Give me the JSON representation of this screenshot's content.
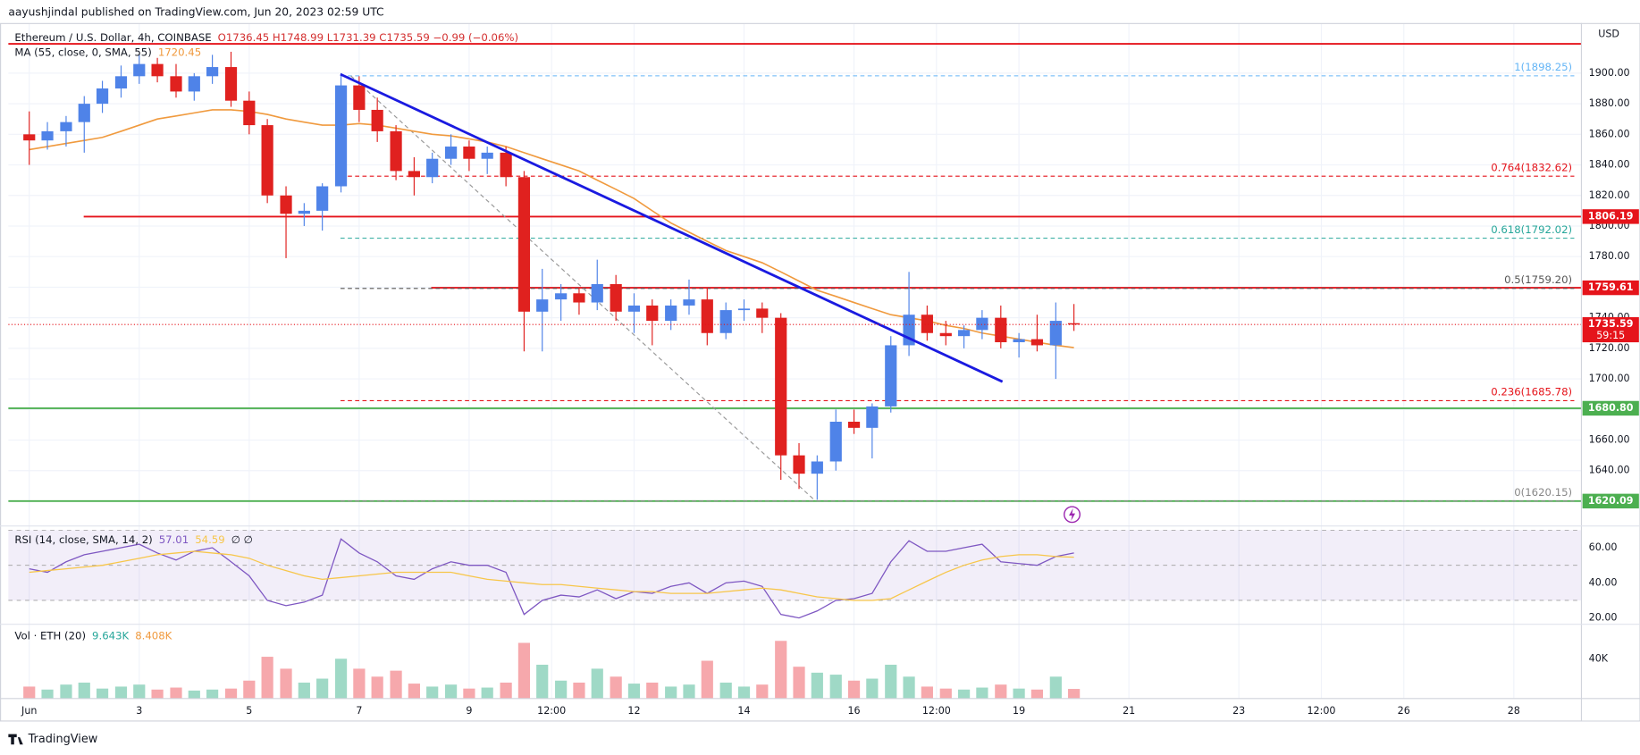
{
  "header": {
    "text": "aayushjindal published on TradingView.com, Jun 20, 2023 02:59 UTC"
  },
  "footer": {
    "text": "TradingView"
  },
  "chart_data": [
    {
      "type": "candlestick",
      "title": "Ethereum / U.S. Dollar, 4h, COINBASE",
      "subtitle": "O1736.45 H1748.99 L1731.39 C1735.59 −0.99 (−0.06%)",
      "axis_unit": "USD",
      "x": [
        1,
        1.33,
        1.67,
        2,
        2.33,
        2.67,
        3,
        3.33,
        3.67,
        4,
        4.33,
        4.67,
        5,
        5.33,
        5.67,
        6,
        6.33,
        6.67,
        7,
        7.33,
        7.67,
        8,
        8.33,
        8.67,
        9,
        9.33,
        9.67,
        10,
        10.33,
        10.67,
        11,
        11.33,
        11.67,
        12,
        12.33,
        12.67,
        13,
        13.33,
        13.67,
        14,
        14.33,
        14.67,
        15,
        15.33,
        15.67,
        16,
        16.33,
        16.67,
        17,
        17.33,
        17.67,
        18,
        18.33,
        18.67,
        19,
        19.33,
        19.67,
        20
      ],
      "open": [
        1860,
        1856,
        1862,
        1868,
        1880,
        1890,
        1898,
        1906,
        1898,
        1888,
        1898,
        1904,
        1882,
        1866,
        1820,
        1808,
        1810,
        1826,
        1892,
        1876,
        1862,
        1836,
        1832,
        1844,
        1852,
        1844,
        1848,
        1832,
        1744,
        1752,
        1756,
        1750,
        1762,
        1744,
        1748,
        1738,
        1748,
        1752,
        1730,
        1745,
        1746,
        1740,
        1650,
        1638,
        1646,
        1672,
        1668,
        1682,
        1722,
        1742,
        1730,
        1728,
        1732,
        1740,
        1724,
        1726,
        1722,
        1736.45
      ],
      "high": [
        1875,
        1868,
        1872,
        1885,
        1895,
        1905,
        1912,
        1910,
        1906,
        1900,
        1912,
        1914,
        1888,
        1870,
        1826,
        1815,
        1828,
        1900,
        1898,
        1884,
        1866,
        1845,
        1848,
        1860,
        1856,
        1852,
        1852,
        1836,
        1772,
        1762,
        1760,
        1778,
        1768,
        1756,
        1752,
        1752,
        1765,
        1760,
        1750,
        1752,
        1750,
        1743,
        1658,
        1650,
        1680,
        1680,
        1684,
        1728,
        1770,
        1748,
        1738,
        1735,
        1745,
        1748,
        1730,
        1742,
        1750,
        1748.99
      ],
      "low": [
        1840,
        1850,
        1852,
        1848,
        1874,
        1884,
        1893,
        1894,
        1884,
        1882,
        1893,
        1878,
        1860,
        1815,
        1779,
        1800,
        1797,
        1822,
        1868,
        1855,
        1830,
        1820,
        1828,
        1840,
        1836,
        1834,
        1826,
        1718,
        1718,
        1738,
        1742,
        1745,
        1738,
        1730,
        1722,
        1732,
        1742,
        1722,
        1726,
        1738,
        1730,
        1634,
        1628,
        1621,
        1640,
        1664,
        1648,
        1678,
        1715,
        1725,
        1722,
        1720,
        1726,
        1720,
        1714,
        1718,
        1700,
        1731.39
      ],
      "close": [
        1856,
        1862,
        1868,
        1880,
        1890,
        1898,
        1906,
        1898,
        1888,
        1898,
        1904,
        1882,
        1866,
        1820,
        1808,
        1810,
        1826,
        1892,
        1876,
        1862,
        1836,
        1832,
        1844,
        1852,
        1844,
        1848,
        1832,
        1744,
        1752,
        1756,
        1750,
        1762,
        1744,
        1748,
        1738,
        1748,
        1752,
        1730,
        1745,
        1746,
        1740,
        1650,
        1638,
        1646,
        1672,
        1668,
        1682,
        1722,
        1742,
        1730,
        1728,
        1732,
        1740,
        1724,
        1726,
        1722,
        1738,
        1735.59
      ],
      "up_color": "#4f83e8",
      "down_color": "#e0211f",
      "ma": {
        "name": "MA (55, close, 0, SMA, 55)",
        "color": "#f09a3e",
        "values": [
          1850,
          1852,
          1854,
          1856,
          1858,
          1862,
          1866,
          1870,
          1872,
          1874,
          1876,
          1876,
          1875,
          1873,
          1870,
          1868,
          1866,
          1866,
          1867,
          1866,
          1864,
          1862,
          1860,
          1859,
          1857,
          1855,
          1852,
          1848,
          1844,
          1840,
          1836,
          1830,
          1824,
          1818,
          1810,
          1802,
          1796,
          1790,
          1784,
          1780,
          1776,
          1770,
          1764,
          1758,
          1754,
          1750,
          1746,
          1742,
          1740,
          1738,
          1735,
          1733,
          1730,
          1728,
          1726,
          1724,
          1722,
          1720.45
        ]
      },
      "xlim": [
        0.62,
        29.23
      ],
      "xticks": [
        {
          "value": 1,
          "label": "Jun"
        },
        3,
        5,
        7,
        9,
        {
          "value": 10.5,
          "label": "12:00"
        },
        12,
        14,
        16,
        {
          "value": 17.5,
          "label": "12:00"
        },
        19,
        21,
        23,
        {
          "value": 24.5,
          "label": "12:00"
        },
        26,
        28
      ],
      "ylim": [
        1603.8,
        1932.8
      ],
      "yticks": [
        {
          "value": 1640,
          "label": "1640.00"
        },
        {
          "value": 1660,
          "label": "1660.00"
        },
        {
          "value": 1680,
          "label": "1680.00"
        },
        {
          "value": 1700,
          "label": "1700.00"
        },
        {
          "value": 1720,
          "label": "1720.00"
        },
        {
          "value": 1740,
          "label": "1740.00"
        },
        {
          "value": 1760,
          "label": "1760.00"
        },
        {
          "value": 1780,
          "label": "1780.00"
        },
        {
          "value": 1800,
          "label": "1800.00"
        },
        {
          "value": 1820,
          "label": "1820.00"
        },
        {
          "value": 1840,
          "label": "1840.00"
        },
        {
          "value": 1860,
          "label": "1860.00"
        },
        {
          "value": 1880,
          "label": "1880.00"
        },
        {
          "value": 1900,
          "label": "1900.00"
        }
      ],
      "grid": true,
      "levels": [
        {
          "value": 1919.2,
          "color": "#e5141b",
          "boxed": false
        },
        {
          "value": 1806.19,
          "color": "#e5141b",
          "x0": 1.99
        },
        {
          "value": 1759.61,
          "color": "#e5141b",
          "x0": 8.31
        },
        {
          "value": 1680.8,
          "label": "1680.80",
          "color": "#4caf50"
        },
        {
          "value": 1620.09,
          "color": "#4caf50"
        }
      ],
      "fib": {
        "x": [
          6.66,
          29.1
        ],
        "levels": [
          {
            "price": 1898.25,
            "label": "1(1898.25)",
            "color": "#64b5f6"
          },
          {
            "price": 1832.62,
            "label": "0.764(1832.62)",
            "color": "#e5141b"
          },
          {
            "price": 1792.02,
            "label": "0.618(1792.02)",
            "color": "#26a69a"
          },
          {
            "price": 1759.2,
            "label": "0.5(1759.20)",
            "color": "#555555"
          },
          {
            "price": 1685.78,
            "label": "0.236(1685.78)",
            "color": "#e5141b"
          },
          {
            "price": 1620.15,
            "label": "0(1620.15)",
            "color": "#888888"
          }
        ]
      },
      "fib_line": {
        "x": [
          6.85,
          15.3
        ],
        "y": [
          1898.25,
          1620.15
        ],
        "color": "#999999"
      },
      "trendline": {
        "x": [
          6.66,
          18.7
        ],
        "y": [
          1899.3,
          1698.2
        ],
        "color": "#1a1ae0"
      },
      "countdown": "59:15",
      "last_color": "#e5141b"
    },
    {
      "type": "line",
      "title": "RSI (14, close, SMA, 14, 2)",
      "extra": "∅ ∅",
      "series": [
        {
          "color": "#7e57c2",
          "values": [
            48,
            46,
            52,
            56,
            58,
            60,
            62,
            57,
            53,
            58,
            60,
            52,
            44,
            30,
            27,
            29,
            33,
            65,
            57,
            52,
            44,
            42,
            48,
            52,
            50,
            50,
            46,
            22,
            30,
            33,
            32,
            36,
            31,
            35,
            34,
            38,
            40,
            34,
            40,
            41,
            38,
            22,
            20,
            24,
            30,
            31,
            34,
            52,
            64,
            58,
            58,
            60,
            62,
            52,
            51,
            50,
            55,
            57.01
          ]
        },
        {
          "color": "#f7c64a",
          "values": [
            46,
            47,
            48,
            49,
            50,
            52,
            54,
            56,
            57,
            58,
            57,
            56,
            54,
            50,
            47,
            44,
            42,
            43,
            44,
            45,
            46,
            46,
            46,
            46,
            44,
            42,
            41,
            40,
            39,
            39,
            38,
            37,
            36,
            35,
            35,
            34,
            34,
            34,
            35,
            36,
            37,
            36,
            34,
            32,
            31,
            30,
            30,
            31,
            36,
            41,
            46,
            50,
            53,
            55,
            56,
            56,
            55,
            54.59
          ]
        }
      ],
      "ylim": [
        16.4,
        72.4
      ],
      "yticks": [
        {
          "value": 20,
          "label": "20.00"
        },
        {
          "value": 40,
          "label": "40.00"
        },
        {
          "value": 60,
          "label": "60.00"
        }
      ],
      "band": [
        30,
        70
      ],
      "band_color": "rgba(126,87,194,0.1)",
      "levels": [
        30,
        50,
        70
      ]
    },
    {
      "type": "bar",
      "title": "Vol · ETH (20)",
      "legend_values": [
        "9.643K",
        "8.408K"
      ],
      "values": [
        12000,
        9000,
        14000,
        16000,
        10000,
        12000,
        14000,
        9000,
        11000,
        8000,
        9000,
        10000,
        18000,
        42000,
        30000,
        16000,
        20000,
        40000,
        30000,
        22000,
        28000,
        15000,
        12000,
        14000,
        10000,
        11000,
        16000,
        56000,
        34000,
        18000,
        16000,
        30000,
        22000,
        15000,
        16000,
        12000,
        14000,
        38000,
        16000,
        12000,
        14000,
        58000,
        32000,
        26000,
        24000,
        18000,
        20000,
        34000,
        22000,
        12000,
        10000,
        9000,
        11000,
        14000,
        10000,
        9000,
        22000,
        9643
      ],
      "up_color": "#9fd9c6",
      "down_color": "#f6a8ac",
      "ylim": [
        0,
        74700
      ],
      "yticks": [
        {
          "value": 40000,
          "label": "40K"
        }
      ]
    }
  ]
}
